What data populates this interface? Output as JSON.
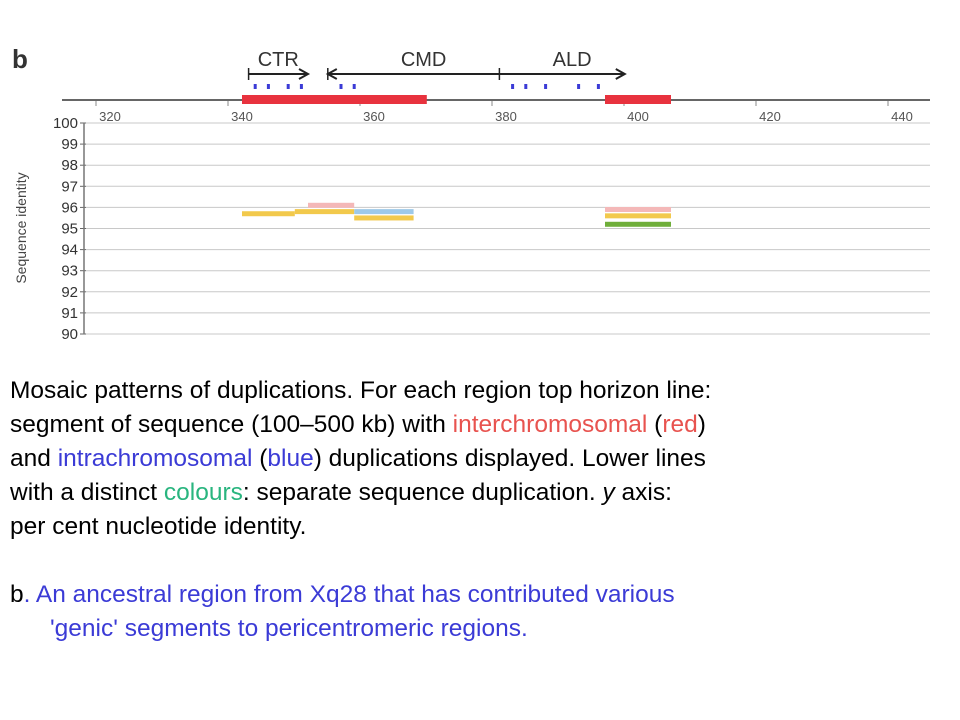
{
  "chart_data": {
    "type": "table",
    "panel_label": "b",
    "ylabel": "Sequence identity",
    "ylim": [
      90,
      100
    ],
    "xlim": [
      315,
      445
    ],
    "x_ticks": [
      "320",
      "340",
      "360",
      "380",
      "400",
      "420",
      "440"
    ],
    "y_ticks": [
      "100",
      "99",
      "98",
      "97",
      "96",
      "95",
      "94",
      "93",
      "92",
      "91",
      "90"
    ],
    "grid": true,
    "genes": [
      {
        "label": "CTR",
        "start": 341,
        "end": 350,
        "direction": "right"
      },
      {
        "label": "CMD",
        "start": 353,
        "end": 379,
        "direction": "left"
      },
      {
        "label": "ALD",
        "start": 379,
        "end": 398,
        "direction": "right"
      }
    ],
    "interchromosomal_segments": [
      {
        "start": 340,
        "end": 368
      },
      {
        "start": 395,
        "end": 405
      }
    ],
    "duplications": [
      {
        "start": 340,
        "end": 348,
        "identity": 95.7,
        "color": "#f2c94c"
      },
      {
        "start": 348,
        "end": 357,
        "identity": 95.8,
        "color": "#f2c94c"
      },
      {
        "start": 350,
        "end": 357,
        "identity": 96.1,
        "color": "#f4b8b8"
      },
      {
        "start": 357,
        "end": 366,
        "identity": 95.8,
        "color": "#9ec9e8"
      },
      {
        "start": 357,
        "end": 366,
        "identity": 95.5,
        "color": "#f2c94c"
      },
      {
        "start": 395,
        "end": 405,
        "identity": 95.9,
        "color": "#f4b8b8"
      },
      {
        "start": 395,
        "end": 405,
        "identity": 95.6,
        "color": "#f2c94c"
      },
      {
        "start": 395,
        "end": 405,
        "identity": 95.2,
        "color": "#6fae3a"
      }
    ],
    "colors": {
      "interchromosomal": "#e8323e",
      "intrachromosomal": "#3b3bd6",
      "axis": "#555555",
      "grid": "#c8c8c8"
    }
  },
  "caption": {
    "l1": "Mosaic patterns of duplications.  For each region top horizon line:",
    "l2_a": "segment of sequence (100–500 kb) with ",
    "l2_b": "interchromosomal",
    "l2_c": " (",
    "l2_d": "red",
    "l2_e": ")",
    "l3_a": "and ",
    "l3_b": "intrachromosomal",
    "l3_c": " (",
    "l3_d": "blue",
    "l3_e": ") duplications displayed.  Lower lines",
    "l4_a": "with a distinct ",
    "l4_b": "colours",
    "l4_c": ": separate sequence duplication. ",
    "l4_d": "y",
    "l4_e": " axis:",
    "l5": "per cent nucleotide identity.",
    "b_label": "b",
    "b_text_1": ". An ancestral region from Xq28 that has contributed various",
    "b_text_2": "'genic' segments to pericentromeric regions."
  }
}
